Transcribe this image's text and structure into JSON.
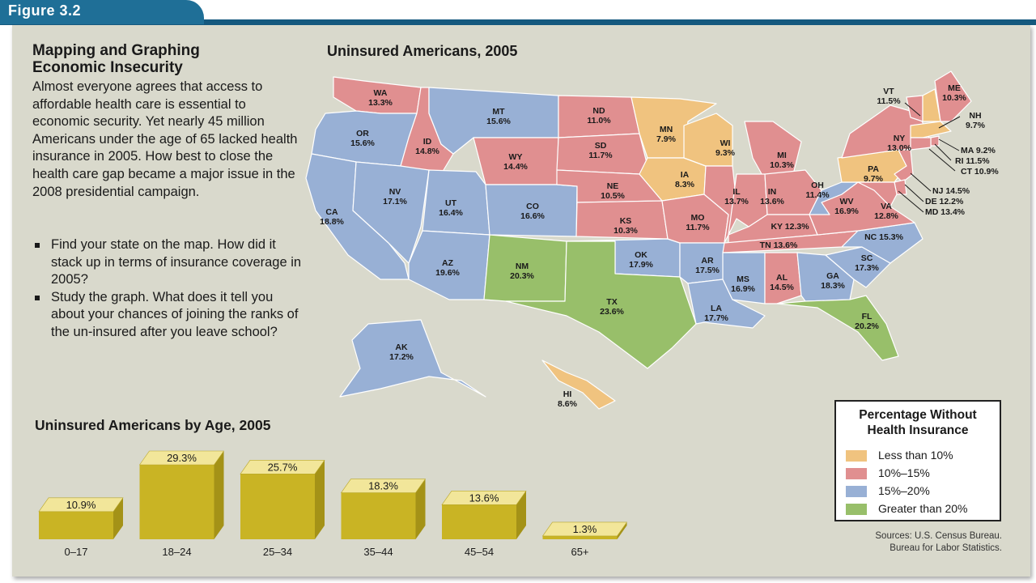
{
  "figure_label": "Figure 3.2",
  "left": {
    "title_line1": "Mapping and Graphing",
    "title_line2": "Economic Insecurity",
    "intro": "Almost everyone agrees that access to affordable health care is essential to economic security. Yet nearly 45 million Americans under the age of 65 lacked health insurance in 2005. How best to close the health care gap became a major issue in the 2008 presidential campaign.",
    "bullets": [
      "Find your state on the map. How did it stack up in terms of insurance coverage in 2005?",
      "Study the graph. What does it tell you about your chances of joining the ranks of the un-insured after you leave school?"
    ]
  },
  "map": {
    "title": "Uninsured Americans, 2005",
    "colors": {
      "lt10": "#f0c37f",
      "10to15": "#e08f90",
      "15to20": "#98b0d5",
      "gt20": "#98bf6a"
    },
    "states": [
      {
        "abbr": "WA",
        "value": "13.3%"
      },
      {
        "abbr": "OR",
        "value": "15.6%"
      },
      {
        "abbr": "CA",
        "value": "18.8%"
      },
      {
        "abbr": "ID",
        "value": "14.8%"
      },
      {
        "abbr": "NV",
        "value": "17.1%"
      },
      {
        "abbr": "MT",
        "value": "15.6%"
      },
      {
        "abbr": "WY",
        "value": "14.4%"
      },
      {
        "abbr": "UT",
        "value": "16.4%"
      },
      {
        "abbr": "AZ",
        "value": "19.6%"
      },
      {
        "abbr": "CO",
        "value": "16.6%"
      },
      {
        "abbr": "NM",
        "value": "20.3%"
      },
      {
        "abbr": "ND",
        "value": "11.0%"
      },
      {
        "abbr": "SD",
        "value": "11.7%"
      },
      {
        "abbr": "NE",
        "value": "10.5%"
      },
      {
        "abbr": "KS",
        "value": "10.3%"
      },
      {
        "abbr": "OK",
        "value": "17.9%"
      },
      {
        "abbr": "TX",
        "value": "23.6%"
      },
      {
        "abbr": "MN",
        "value": "7.9%"
      },
      {
        "abbr": "IA",
        "value": "8.3%"
      },
      {
        "abbr": "MO",
        "value": "11.7%"
      },
      {
        "abbr": "AR",
        "value": "17.5%"
      },
      {
        "abbr": "LA",
        "value": "17.7%"
      },
      {
        "abbr": "WI",
        "value": "9.3%"
      },
      {
        "abbr": "IL",
        "value": "13.7%"
      },
      {
        "abbr": "MI",
        "value": "10.3%"
      },
      {
        "abbr": "IN",
        "value": "13.6%"
      },
      {
        "abbr": "OH",
        "value": "11.4%"
      },
      {
        "abbr": "KY",
        "value": "12.3%"
      },
      {
        "abbr": "TN",
        "value": "13.6%"
      },
      {
        "abbr": "MS",
        "value": "16.9%"
      },
      {
        "abbr": "AL",
        "value": "14.5%"
      },
      {
        "abbr": "GA",
        "value": "18.3%"
      },
      {
        "abbr": "FL",
        "value": "20.2%"
      },
      {
        "abbr": "SC",
        "value": "17.3%"
      },
      {
        "abbr": "NC",
        "value": "15.3%"
      },
      {
        "abbr": "VA",
        "value": "12.8%"
      },
      {
        "abbr": "WV",
        "value": "16.9%"
      },
      {
        "abbr": "PA",
        "value": "9.7%"
      },
      {
        "abbr": "NY",
        "value": "13.0%"
      },
      {
        "abbr": "VT",
        "value": "11.5%"
      },
      {
        "abbr": "ME",
        "value": "10.3%"
      },
      {
        "abbr": "NH",
        "value": "9.7%"
      },
      {
        "abbr": "MA",
        "value": "9.2%"
      },
      {
        "abbr": "RI",
        "value": "11.5%"
      },
      {
        "abbr": "CT",
        "value": "10.9%"
      },
      {
        "abbr": "NJ",
        "value": "14.5%"
      },
      {
        "abbr": "DE",
        "value": "12.2%"
      },
      {
        "abbr": "MD",
        "value": "13.4%"
      },
      {
        "abbr": "AK",
        "value": "17.2%"
      },
      {
        "abbr": "HI",
        "value": "8.6%"
      }
    ]
  },
  "legend": {
    "title_line1": "Percentage Without",
    "title_line2": "Health Insurance",
    "items": [
      "Less than 10%",
      "10%–15%",
      "15%–20%",
      "Greater than 20%"
    ]
  },
  "sources": {
    "line1": "Sources: U.S. Census Bureau.",
    "line2": "Bureau for Labor Statistics."
  },
  "chart_data": {
    "type": "bar",
    "title": "Uninsured Americans by Age, 2005",
    "categories": [
      "0–17",
      "18–24",
      "25–34",
      "35–44",
      "45–54",
      "65+"
    ],
    "values": [
      10.9,
      29.3,
      25.7,
      18.3,
      13.6,
      1.3
    ],
    "value_labels": [
      "10.9%",
      "29.3%",
      "25.7%",
      "18.3%",
      "13.6%",
      "1.3%"
    ],
    "bar_color": "#c9b424"
  }
}
